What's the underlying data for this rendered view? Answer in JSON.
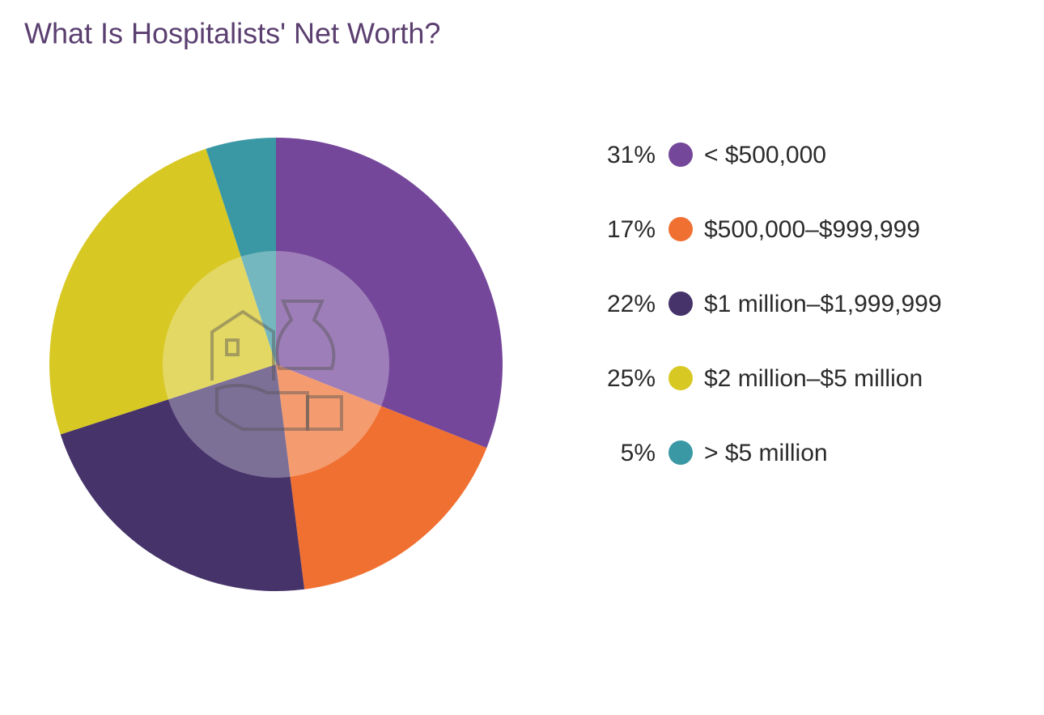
{
  "chart_data": {
    "type": "pie",
    "title": "What Is Hospitalists' Net Worth?",
    "categories": [
      "< $500,000",
      "$500,000–$999,999",
      "$1 million–$1,999,999",
      "$2 million–$5 million",
      "> $5 million"
    ],
    "values": [
      31,
      17,
      22,
      25,
      5
    ],
    "value_labels": [
      "31%",
      "17%",
      "22%",
      "25%",
      "5%"
    ],
    "colors": [
      "#74479a",
      "#f07031",
      "#46336a",
      "#d8c823",
      "#3a98a4"
    ],
    "legend": "right"
  }
}
